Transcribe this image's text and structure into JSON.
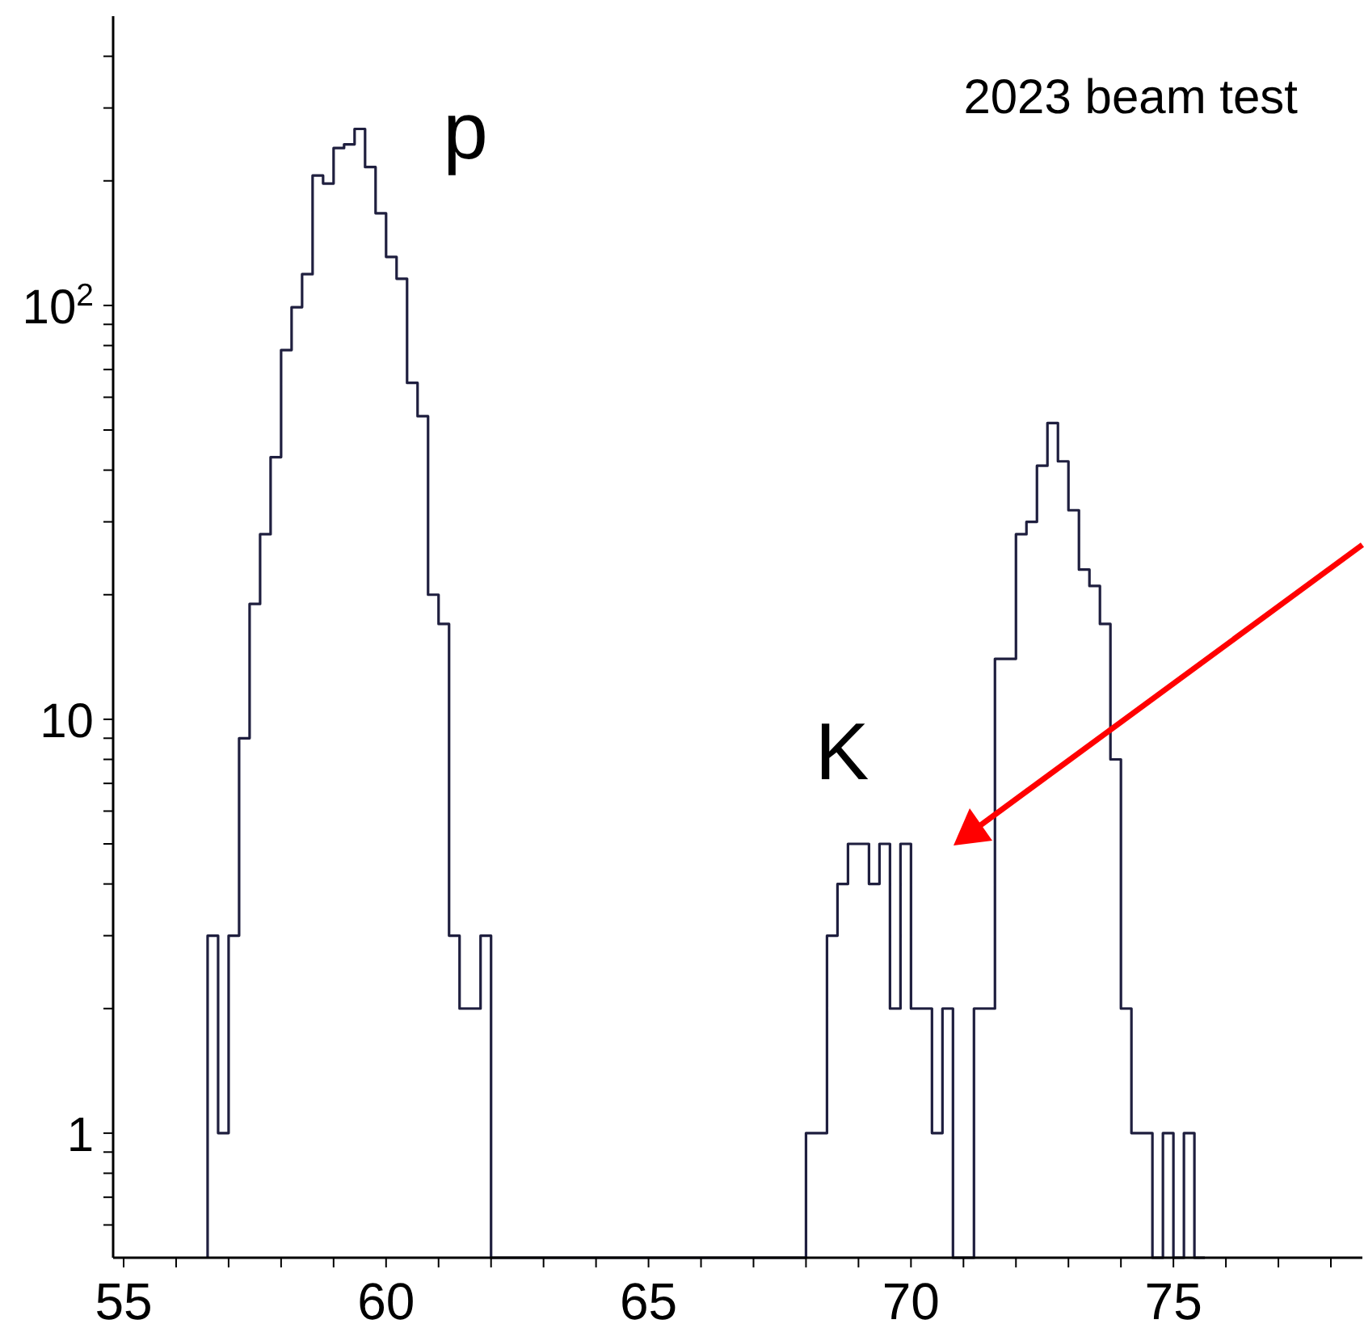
{
  "chart_data": {
    "type": "histogram",
    "bins": [
      56.6,
      56.8,
      57.0,
      57.2,
      57.4,
      57.6,
      57.8,
      58.0,
      58.2,
      58.4,
      58.6,
      58.8,
      59.0,
      59.2,
      59.4,
      59.6,
      59.8,
      60.0,
      60.2,
      60.4,
      60.6,
      60.8,
      61.0,
      61.2,
      61.4,
      61.6,
      61.8,
      62.0,
      62.2,
      62.4,
      62.6,
      62.8,
      63.0,
      63.2,
      63.4,
      63.6,
      63.8,
      64.0,
      64.2,
      64.4,
      64.6,
      64.8,
      65.0,
      65.2,
      65.4,
      65.6,
      65.8,
      66.0,
      66.2,
      66.4,
      66.6,
      66.8,
      67.0,
      67.2,
      67.4,
      67.6,
      67.8,
      68.0,
      68.2,
      68.4,
      68.6,
      68.8,
      69.0,
      69.2,
      69.4,
      69.6,
      69.8,
      70.0,
      70.2,
      70.4,
      70.6,
      70.8,
      71.0,
      71.2,
      71.4,
      71.6,
      71.8,
      72.0,
      72.2,
      72.4,
      72.6,
      72.8,
      73.0,
      73.2,
      73.4,
      73.6,
      73.8,
      74.0,
      74.2,
      74.4,
      74.6,
      74.8,
      75.0,
      75.2,
      75.4,
      75.6
    ],
    "values": [
      3,
      1,
      3,
      9,
      19,
      28,
      43,
      78,
      99,
      119,
      206,
      197,
      240,
      245,
      267,
      216,
      167,
      131,
      116,
      65,
      54,
      20,
      17,
      3,
      2,
      2,
      3,
      null,
      null,
      null,
      null,
      null,
      null,
      null,
      null,
      null,
      null,
      null,
      null,
      null,
      null,
      null,
      null,
      null,
      null,
      null,
      null,
      null,
      null,
      null,
      null,
      null,
      null,
      null,
      null,
      null,
      null,
      1,
      1,
      3,
      4,
      5,
      5,
      4,
      5,
      2,
      5,
      2,
      2,
      1,
      2,
      null,
      null,
      2,
      2,
      14,
      14,
      28,
      30,
      41,
      52,
      42,
      32,
      23,
      21,
      17,
      8,
      2,
      1,
      1,
      null,
      1,
      null,
      1,
      null
    ],
    "color": "#1f1f3f",
    "line_style": "solid",
    "log": "y",
    "xlim": [
      54.8,
      78.6
    ],
    "xticks": [
      55,
      {
        "value": 56,
        "label": null
      },
      {
        "value": 57,
        "label": null
      },
      {
        "value": 58,
        "label": null
      },
      {
        "value": 59,
        "label": null
      },
      60,
      {
        "value": 61,
        "label": null
      },
      {
        "value": 62,
        "label": null
      },
      {
        "value": 63,
        "label": null
      },
      {
        "value": 64,
        "label": null
      },
      65,
      {
        "value": 66,
        "label": null
      },
      {
        "value": 67,
        "label": null
      },
      {
        "value": 68,
        "label": null
      },
      {
        "value": 69,
        "label": null
      },
      70,
      {
        "value": 71,
        "label": null
      },
      {
        "value": 72,
        "label": null
      },
      {
        "value": 73,
        "label": null
      },
      {
        "value": 74,
        "label": null
      },
      75,
      {
        "value": 76,
        "label": null
      },
      {
        "value": 77,
        "label": null
      },
      {
        "value": 78,
        "label": null
      }
    ],
    "ylim": [
      0.5,
      500
    ],
    "yticks": [
      {
        "value": 0.6,
        "label": null
      },
      {
        "value": 0.7,
        "label": null
      },
      {
        "value": 0.8,
        "label": null
      },
      {
        "value": 0.9,
        "label": null
      },
      {
        "value": 1,
        "label": "1"
      },
      {
        "value": 2,
        "label": null
      },
      {
        "value": 3,
        "label": null
      },
      {
        "value": 4,
        "label": null
      },
      {
        "value": 5,
        "label": null
      },
      {
        "value": 6,
        "label": null
      },
      {
        "value": 7,
        "label": null
      },
      {
        "value": 8,
        "label": null
      },
      {
        "value": 9,
        "label": null
      },
      {
        "value": 10,
        "label": "10"
      },
      {
        "value": 20,
        "label": null
      },
      {
        "value": 30,
        "label": null
      },
      {
        "value": 40,
        "label": null
      },
      {
        "value": 50,
        "label": null
      },
      {
        "value": 60,
        "label": null
      },
      {
        "value": 70,
        "label": null
      },
      {
        "value": 80,
        "label": null
      },
      {
        "value": 90,
        "label": null
      },
      {
        "value": 100,
        "label": "10$^{2}$"
      },
      {
        "value": 200,
        "label": null
      },
      {
        "value": 300,
        "label": null
      },
      {
        "value": 400,
        "label": null
      }
    ],
    "annotations": [
      "2023 beam test",
      "p",
      "K"
    ]
  }
}
